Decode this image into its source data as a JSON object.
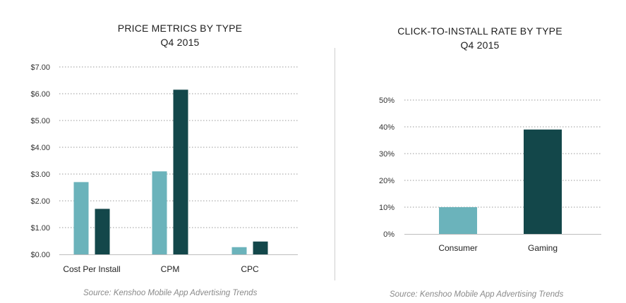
{
  "chart_data": [
    {
      "type": "bar",
      "title_line1": "PRICE METRICS BY TYPE",
      "title_line2": "Q4 2015",
      "categories": [
        "Cost Per Install",
        "CPM",
        "CPC"
      ],
      "series": [
        {
          "values": [
            2.7,
            3.1,
            0.27
          ],
          "color": "#6bb3bb"
        },
        {
          "values": [
            1.7,
            6.15,
            0.48
          ],
          "color": "#13474a"
        }
      ],
      "yticks": [
        "$0.00",
        "$1.00",
        "$2.00",
        "$3.00",
        "$4.00",
        "$5.00",
        "$6.00",
        "$7.00"
      ],
      "ylim": [
        0,
        7
      ],
      "grid": true,
      "source": "Source: Kenshoo Mobile App Advertising Trends"
    },
    {
      "type": "bar",
      "title_line1": "CLICK-TO-INSTALL RATE BY TYPE",
      "title_line2": "Q4 2015",
      "categories": [
        "Consumer",
        "Gaming"
      ],
      "values": [
        10,
        39
      ],
      "colors": [
        "#6bb3bb",
        "#13474a"
      ],
      "yticks": [
        "0%",
        "10%",
        "20%",
        "30%",
        "40%",
        "50%"
      ],
      "ylim": [
        0,
        50
      ],
      "grid": true,
      "source": "Source: Kenshoo Mobile App Advertising Trends"
    }
  ]
}
